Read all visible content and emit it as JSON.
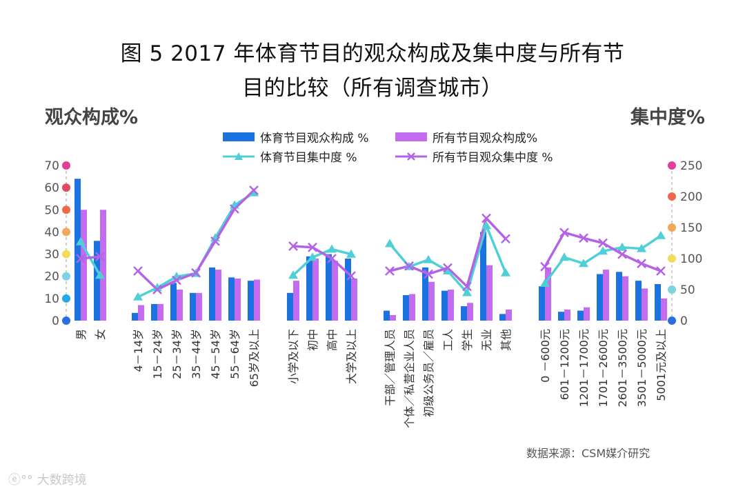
{
  "title_line1": "图 5 2017 年体育节目的观众构成及集中度与所有节",
  "title_line2": "目的比较（所有调查城市）",
  "left_axis_title": "观众构成%",
  "right_axis_title": "集中度%",
  "source": "数据来源：CSM媒介研究",
  "watermark": "大数跨境",
  "colors": {
    "sports_bar": "#1a73e0",
    "all_bar": "#c46cf0",
    "sports_line": "#4fcfd6",
    "all_line": "#b462e6",
    "dots": [
      "#2a6fdf",
      "#28a8e8",
      "#7dd3e0",
      "#f2dd5a",
      "#f3a75a",
      "#ec6a4a",
      "#e2495a",
      "#e0409a"
    ]
  },
  "chart_data": {
    "type": "bar+line",
    "legend": [
      "体育节目观众构成 %",
      "所有节目观众构成%",
      "体育节目集中度 %",
      "所有节目观众集中度 %"
    ],
    "left_ylim": [
      0,
      70
    ],
    "left_ticks": [
      "0",
      "10",
      "20",
      "30",
      "40",
      "50",
      "60",
      "70"
    ],
    "right_ylim": [
      0,
      250
    ],
    "right_ticks": [
      "0",
      "50",
      "100",
      "150",
      "200",
      "250"
    ],
    "groups": [
      {
        "categories": [
          "男",
          "女"
        ],
        "sports": [
          64,
          36
        ],
        "all": [
          50,
          50
        ],
        "sports_conc": [
          127,
          73
        ],
        "all_conc": [
          100,
          103
        ]
      },
      {
        "categories": [
          "4－14岁",
          "15－24岁",
          "25－34岁",
          "35－44岁",
          "45－54岁",
          "55－64岁",
          "65岁及以上"
        ],
        "sports": [
          3.5,
          7.5,
          17,
          12.5,
          24,
          19.5,
          18
        ],
        "all": [
          7,
          7.5,
          14,
          12.5,
          23,
          19,
          18.5
        ],
        "sports_conc": [
          38,
          53,
          71,
          76,
          133,
          186,
          206
        ],
        "all_conc": [
          80,
          50,
          65,
          77,
          128,
          180,
          210
        ]
      },
      {
        "categories": [
          "小学及以下",
          "初中",
          "高中",
          "大学及以上"
        ],
        "sports": [
          12.5,
          29,
          30,
          28
        ],
        "all": [
          18,
          28,
          27,
          19
        ],
        "sports_conc": [
          73,
          102,
          115,
          107
        ],
        "all_conc": [
          120,
          118,
          100,
          72
        ]
      },
      {
        "categories": [
          "干部／管理人员",
          "个体／私营企业人员",
          "初级公务员／雇员",
          "工人",
          "学生",
          "无业",
          "其他"
        ],
        "sports": [
          4.5,
          11.5,
          24,
          13.5,
          6.5,
          40,
          3
        ],
        "all": [
          2.5,
          12,
          17.5,
          14,
          8,
          25,
          5
        ],
        "sports_conc": [
          124,
          87,
          98,
          80,
          45,
          153,
          77
        ],
        "all_conc": [
          80,
          88,
          75,
          85,
          55,
          165,
          132
        ]
      },
      {
        "categories": [
          "0 －600元",
          "601－1200元",
          "1201－1700元",
          "1701－2600元",
          "2601－3500元",
          "3501－5000元",
          "5001元及以上"
        ],
        "sports": [
          15.5,
          4,
          4.5,
          21,
          22,
          18,
          16.5
        ],
        "all": [
          24,
          5,
          6,
          23,
          20,
          14.5,
          10
        ],
        "sports_conc": [
          60,
          102,
          92,
          112,
          118,
          116,
          137
        ],
        "all_conc": [
          87,
          142,
          133,
          125,
          107,
          92,
          80
        ]
      }
    ]
  }
}
